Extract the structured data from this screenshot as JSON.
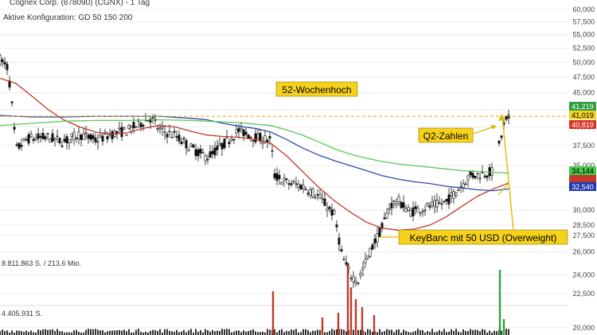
{
  "header": {
    "title": "Cognex Corp. (878090) (CGNX) - 1 Tag",
    "config": "Aktive Konfiguration: GD 50 150 200"
  },
  "volume_labels": {
    "line1": "8.811.863 S. / 213,6 Mio.",
    "line2": "4.405.931 S."
  },
  "price_badges": [
    {
      "value": "41,219",
      "bg": "#2e9e3e",
      "fg": "#ffffff"
    },
    {
      "value": "41,019",
      "bg": "#f3d21e",
      "fg": "#000000"
    },
    {
      "value": "40,819",
      "bg": "#d9342b",
      "fg": "#ffffff"
    },
    {
      "value": "34,144",
      "bg": "#48c84a",
      "fg": "#000000"
    },
    {
      "value": "",
      "bg": "#c0392b",
      "fg": "#ffffff"
    },
    {
      "value": "32,540",
      "bg": "#2238b0",
      "fg": "#ffffff"
    }
  ],
  "annotations": [
    {
      "text": "52-Wochenhoch"
    },
    {
      "text": "Q2-Zahlen"
    },
    {
      "text": "KeyBanc mit 50 USD (Overweight)"
    }
  ],
  "chart_data": {
    "type": "candlestick",
    "title": "",
    "y_scale": "log",
    "ylim": [
      19.5,
      62
    ],
    "y_ticks": [
      "60,000",
      "57,500",
      "55,000",
      "52,500",
      "50,000",
      "47,500",
      "45,000",
      "42,500",
      "40,000",
      "37,500",
      "35,000",
      "32,500",
      "30,000",
      "28,500",
      "27,500",
      "26,000",
      "24,000",
      "22,500",
      "20,000"
    ],
    "reference_line": {
      "name": "52-Wochenhoch",
      "value": 41.5,
      "color": "#f0a500"
    },
    "series": [
      {
        "name": "GD 50",
        "color": "#c0392b",
        "points": [
          [
            0,
            47.3
          ],
          [
            20,
            46.5
          ],
          [
            40,
            44.5
          ],
          [
            60,
            42.5
          ],
          [
            80,
            41.0
          ],
          [
            100,
            40.0
          ],
          [
            120,
            39.3
          ],
          [
            140,
            39.0
          ],
          [
            160,
            39.2
          ],
          [
            180,
            39.8
          ],
          [
            200,
            40.2
          ],
          [
            220,
            40.0
          ],
          [
            240,
            39.4
          ],
          [
            260,
            38.9
          ],
          [
            280,
            38.7
          ],
          [
            300,
            38.6
          ],
          [
            320,
            38.3
          ],
          [
            340,
            37.8
          ],
          [
            360,
            36.2
          ],
          [
            380,
            34.3
          ],
          [
            400,
            32.5
          ],
          [
            420,
            31.0
          ],
          [
            440,
            29.8
          ],
          [
            460,
            28.8
          ],
          [
            480,
            28.2
          ],
          [
            500,
            28.0
          ],
          [
            520,
            28.1
          ],
          [
            540,
            28.5
          ],
          [
            560,
            29.3
          ],
          [
            580,
            30.4
          ],
          [
            600,
            31.5
          ],
          [
            620,
            32.3
          ],
          [
            640,
            33.0
          ]
        ]
      },
      {
        "name": "GD 150",
        "color": "#2e4aa8",
        "points": [
          [
            0,
            41.6
          ],
          [
            40,
            41.4
          ],
          [
            80,
            41.4
          ],
          [
            120,
            41.5
          ],
          [
            160,
            41.5
          ],
          [
            200,
            41.5
          ],
          [
            240,
            41.2
          ],
          [
            260,
            41.0
          ],
          [
            280,
            40.5
          ],
          [
            300,
            40.1
          ],
          [
            320,
            39.8
          ],
          [
            340,
            39.3
          ],
          [
            360,
            38.3
          ],
          [
            380,
            37.2
          ],
          [
            400,
            36.3
          ],
          [
            420,
            35.6
          ],
          [
            440,
            35.0
          ],
          [
            460,
            34.4
          ],
          [
            480,
            33.8
          ],
          [
            500,
            33.4
          ],
          [
            520,
            33.1
          ],
          [
            540,
            32.9
          ],
          [
            560,
            32.6
          ],
          [
            580,
            32.4
          ],
          [
            600,
            32.2
          ],
          [
            620,
            32.1
          ],
          [
            640,
            32.3
          ]
        ]
      },
      {
        "name": "GD 200",
        "color": "#5cc85a",
        "points": [
          [
            0,
            40.2
          ],
          [
            40,
            40.5
          ],
          [
            80,
            40.8
          ],
          [
            120,
            40.9
          ],
          [
            160,
            40.9
          ],
          [
            200,
            41.0
          ],
          [
            240,
            40.9
          ],
          [
            260,
            40.8
          ],
          [
            300,
            40.6
          ],
          [
            340,
            40.2
          ],
          [
            360,
            39.6
          ],
          [
            380,
            38.9
          ],
          [
            400,
            38.0
          ],
          [
            420,
            37.1
          ],
          [
            440,
            36.4
          ],
          [
            460,
            35.9
          ],
          [
            480,
            35.5
          ],
          [
            500,
            35.2
          ],
          [
            520,
            35.0
          ],
          [
            540,
            34.8
          ],
          [
            560,
            34.6
          ],
          [
            580,
            34.4
          ],
          [
            600,
            34.3
          ],
          [
            620,
            34.2
          ],
          [
            640,
            34.1
          ]
        ]
      }
    ],
    "ohlc_anchors": [
      [
        0,
        50.5
      ],
      [
        10,
        49.0
      ],
      [
        20,
        37.0
      ],
      [
        35,
        38.4
      ],
      [
        60,
        38.6
      ],
      [
        80,
        38.0
      ],
      [
        100,
        39.0
      ],
      [
        120,
        38.2
      ],
      [
        140,
        39.0
      ],
      [
        160,
        39.5
      ],
      [
        175,
        40.4
      ],
      [
        190,
        41.3
      ],
      [
        200,
        39.6
      ],
      [
        220,
        38.8
      ],
      [
        240,
        37.2
      ],
      [
        260,
        36.0
      ],
      [
        280,
        37.6
      ],
      [
        300,
        39.5
      ],
      [
        320,
        38.6
      ],
      [
        340,
        38.2
      ],
      [
        345,
        33.8
      ],
      [
        360,
        33.0
      ],
      [
        380,
        32.6
      ],
      [
        400,
        31.5
      ],
      [
        420,
        29.5
      ],
      [
        430,
        25.5
      ],
      [
        440,
        24.0
      ],
      [
        450,
        23.5
      ],
      [
        460,
        25.2
      ],
      [
        470,
        26.8
      ],
      [
        480,
        28.2
      ],
      [
        490,
        30.5
      ],
      [
        500,
        31.0
      ],
      [
        515,
        29.8
      ],
      [
        530,
        30.2
      ],
      [
        545,
        30.5
      ],
      [
        560,
        30.8
      ],
      [
        575,
        32.2
      ],
      [
        590,
        33.8
      ],
      [
        605,
        34.0
      ],
      [
        620,
        34.3
      ],
      [
        628,
        38.0
      ],
      [
        635,
        41.0
      ],
      [
        640,
        41.0
      ]
    ],
    "volume_scale": 8811863,
    "volume_spikes": [
      [
        343,
        0.55
      ],
      [
        405,
        0.22
      ],
      [
        425,
        0.28
      ],
      [
        437,
        0.9
      ],
      [
        441,
        0.6
      ],
      [
        447,
        0.45
      ],
      [
        455,
        0.35
      ],
      [
        470,
        0.25
      ],
      [
        628,
        0.82
      ],
      [
        633,
        0.2
      ]
    ]
  }
}
